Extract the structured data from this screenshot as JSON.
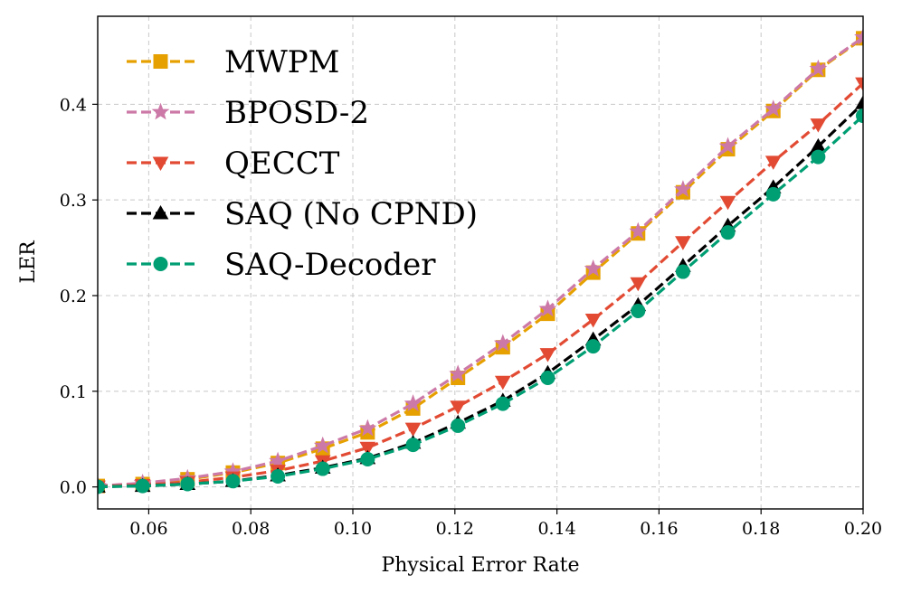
{
  "chart_data": {
    "type": "line",
    "title": "",
    "xlabel": "Physical Error Rate",
    "ylabel": "LER",
    "xlim": [
      0.05,
      0.2
    ],
    "ylim": [
      -0.023,
      0.492
    ],
    "xticks": [
      0.06,
      0.08,
      0.1,
      0.12,
      0.14,
      0.16,
      0.18,
      0.2
    ],
    "xtick_labels": [
      "0.06",
      "0.08",
      "0.10",
      "0.12",
      "0.14",
      "0.16",
      "0.18",
      "0.20"
    ],
    "yticks": [
      0.0,
      0.1,
      0.2,
      0.3,
      0.4
    ],
    "ytick_labels": [
      "0.0",
      "0.1",
      "0.2",
      "0.3",
      "0.4"
    ],
    "grid": true,
    "legend_position": "upper-left",
    "x": [
      0.05,
      0.0588,
      0.0676,
      0.0765,
      0.0853,
      0.0941,
      0.1029,
      0.1118,
      0.1206,
      0.1294,
      0.1382,
      0.1471,
      0.1559,
      0.1647,
      0.1735,
      0.1824,
      0.1912,
      0.2
    ],
    "series": [
      {
        "name": "MWPM",
        "color": "#e6a000",
        "marker": "square",
        "values": [
          0.001,
          0.003,
          0.008,
          0.015,
          0.025,
          0.04,
          0.057,
          0.082,
          0.114,
          0.146,
          0.181,
          0.224,
          0.265,
          0.308,
          0.353,
          0.393,
          0.436,
          0.469
        ]
      },
      {
        "name": "BPOSD-2",
        "color": "#cc79a7",
        "marker": "star",
        "values": [
          0.001,
          0.004,
          0.009,
          0.016,
          0.027,
          0.043,
          0.061,
          0.087,
          0.118,
          0.15,
          0.186,
          0.228,
          0.267,
          0.311,
          0.356,
          0.395,
          0.437,
          0.47
        ]
      },
      {
        "name": "QECCT",
        "color": "#e24a33",
        "marker": "triangle-down",
        "values": [
          0.0005,
          0.002,
          0.005,
          0.01,
          0.017,
          0.027,
          0.041,
          0.061,
          0.084,
          0.11,
          0.139,
          0.175,
          0.213,
          0.256,
          0.298,
          0.34,
          0.379,
          0.422
        ]
      },
      {
        "name": "SAQ (No CPND)",
        "color": "#000000",
        "marker": "triangle-up",
        "values": [
          0.0003,
          0.001,
          0.003,
          0.006,
          0.012,
          0.02,
          0.03,
          0.046,
          0.067,
          0.09,
          0.119,
          0.154,
          0.19,
          0.231,
          0.273,
          0.313,
          0.356,
          0.401
        ]
      },
      {
        "name": "SAQ-Decoder",
        "color": "#009e73",
        "marker": "circle",
        "values": [
          0.0002,
          0.001,
          0.003,
          0.006,
          0.011,
          0.019,
          0.029,
          0.044,
          0.064,
          0.087,
          0.114,
          0.147,
          0.184,
          0.225,
          0.266,
          0.306,
          0.345,
          0.388
        ]
      }
    ]
  }
}
